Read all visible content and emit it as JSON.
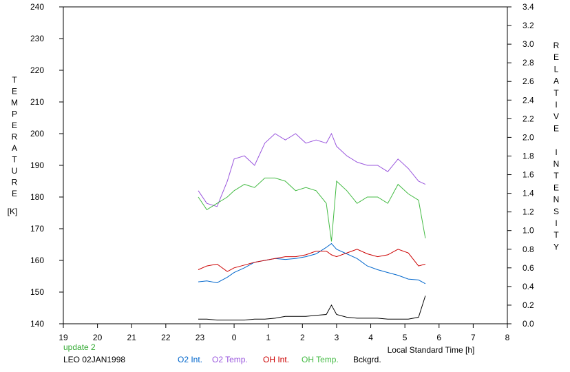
{
  "chart_data": {
    "type": "line",
    "title": "",
    "xlabel": "Local Standard Time [h]",
    "ylabel_left": "TEMPERATURE",
    "ylabel_left_unit": "[K]",
    "ylabel_right": "RELATIVE INTENSITY",
    "x_ticks": [
      "19",
      "20",
      "21",
      "22",
      "23",
      "0",
      "1",
      "2",
      "3",
      "4",
      "5",
      "6",
      "7",
      "8"
    ],
    "xlim": [
      19,
      32
    ],
    "ylim_left": [
      140,
      240
    ],
    "ylim_right": [
      0.0,
      3.4
    ],
    "y_ticks_left": [
      140,
      150,
      160,
      170,
      180,
      190,
      200,
      210,
      220,
      230,
      240
    ],
    "y_ticks_right": [
      "0.0",
      "0.2",
      "0.4",
      "0.6",
      "0.8",
      "1.0",
      "1.2",
      "1.4",
      "1.6",
      "1.8",
      "2.0",
      "2.2",
      "2.4",
      "2.6",
      "2.8",
      "3.0",
      "3.2",
      "3.4"
    ],
    "grid": false,
    "status_text": "update 2",
    "station_label": "LEO 02JAN1998",
    "series": [
      {
        "name": "O2 Int.",
        "color": "#0066cc",
        "axis": "right",
        "x": [
          22.95,
          23.2,
          23.5,
          23.8,
          24.0,
          24.3,
          24.6,
          24.9,
          25.2,
          25.5,
          25.8,
          26.1,
          26.4,
          26.7,
          26.85,
          27.0,
          27.3,
          27.6,
          27.9,
          28.2,
          28.5,
          28.8,
          29.1,
          29.4,
          29.6
        ],
        "y": [
          0.45,
          0.46,
          0.44,
          0.5,
          0.55,
          0.6,
          0.66,
          0.68,
          0.7,
          0.69,
          0.7,
          0.72,
          0.75,
          0.82,
          0.86,
          0.8,
          0.75,
          0.7,
          0.62,
          0.58,
          0.55,
          0.52,
          0.48,
          0.47,
          0.43
        ]
      },
      {
        "name": "O2 Temp.",
        "color": "#9955dd",
        "axis": "left",
        "x": [
          22.95,
          23.2,
          23.5,
          23.8,
          24.0,
          24.3,
          24.6,
          24.9,
          25.2,
          25.5,
          25.8,
          26.1,
          26.4,
          26.7,
          26.85,
          27.0,
          27.3,
          27.6,
          27.9,
          28.2,
          28.5,
          28.8,
          29.1,
          29.4,
          29.6
        ],
        "y": [
          182,
          178,
          177,
          185,
          192,
          193,
          190,
          197,
          200,
          198,
          200,
          197,
          198,
          197,
          200,
          196,
          193,
          191,
          190,
          190,
          188,
          192,
          189,
          185,
          184
        ]
      },
      {
        "name": "OH Int.",
        "color": "#cc0000",
        "axis": "right",
        "x": [
          22.95,
          23.2,
          23.5,
          23.8,
          24.0,
          24.3,
          24.6,
          24.9,
          25.2,
          25.5,
          25.8,
          26.1,
          26.4,
          26.7,
          26.85,
          27.0,
          27.3,
          27.6,
          27.9,
          28.2,
          28.5,
          28.8,
          29.1,
          29.4,
          29.6
        ],
        "y": [
          0.58,
          0.62,
          0.64,
          0.56,
          0.6,
          0.63,
          0.66,
          0.68,
          0.7,
          0.72,
          0.72,
          0.74,
          0.78,
          0.78,
          0.74,
          0.72,
          0.76,
          0.8,
          0.75,
          0.72,
          0.74,
          0.8,
          0.76,
          0.62,
          0.64
        ]
      },
      {
        "name": "OH Temp.",
        "color": "#44bb44",
        "axis": "left",
        "x": [
          22.95,
          23.2,
          23.5,
          23.8,
          24.0,
          24.3,
          24.6,
          24.9,
          25.2,
          25.5,
          25.8,
          26.1,
          26.4,
          26.7,
          26.85,
          27.0,
          27.3,
          27.6,
          27.9,
          28.2,
          28.5,
          28.8,
          29.1,
          29.4,
          29.6
        ],
        "y": [
          180,
          176,
          178,
          180,
          182,
          184,
          183,
          186,
          186,
          185,
          182,
          183,
          182,
          178,
          166,
          185,
          182,
          178,
          180,
          180,
          178,
          184,
          181,
          179,
          167
        ]
      },
      {
        "name": "Bckgrd.",
        "color": "#000000",
        "axis": "right",
        "x": [
          22.95,
          23.2,
          23.5,
          23.8,
          24.0,
          24.3,
          24.6,
          24.9,
          25.2,
          25.5,
          25.8,
          26.1,
          26.4,
          26.7,
          26.85,
          27.0,
          27.3,
          27.6,
          27.9,
          28.2,
          28.5,
          28.8,
          29.1,
          29.4,
          29.6
        ],
        "y": [
          0.05,
          0.05,
          0.04,
          0.04,
          0.04,
          0.04,
          0.05,
          0.05,
          0.06,
          0.08,
          0.08,
          0.08,
          0.09,
          0.1,
          0.2,
          0.1,
          0.07,
          0.06,
          0.06,
          0.06,
          0.05,
          0.05,
          0.05,
          0.07,
          0.3
        ]
      }
    ]
  }
}
